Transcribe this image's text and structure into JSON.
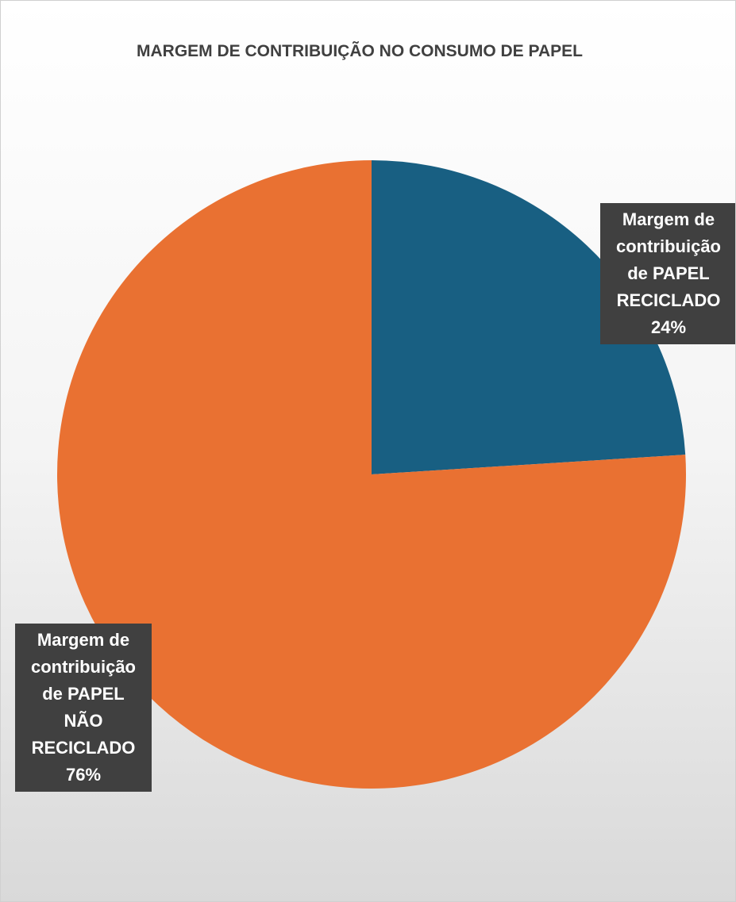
{
  "chart_data": {
    "type": "pie",
    "title": "MARGEM DE CONTRIBUIÇÃO NO CONSUMO DE PAPEL",
    "categories": [
      "Margem de contribuição de PAPEL RECICLADO",
      "Margem de contribuição de PAPEL NÃO RECICLADO"
    ],
    "values": [
      24,
      76
    ],
    "value_labels": [
      "24%",
      "76%"
    ],
    "colors": [
      "#185f82",
      "#e97132"
    ]
  }
}
